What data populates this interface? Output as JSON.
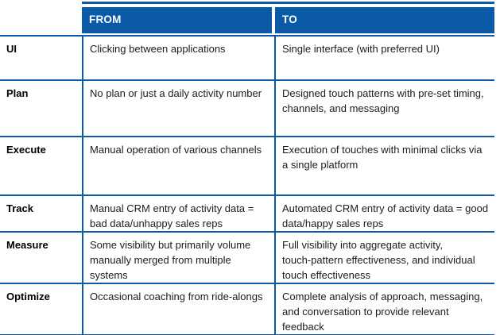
{
  "table": {
    "colors": {
      "accent_blue": "#0b5aa7"
    },
    "header": {
      "from": "FROM",
      "to": "TO"
    },
    "rows": [
      {
        "label": "UI",
        "from": "Clicking between applications",
        "to": "Single interface (with preferred UI)"
      },
      {
        "label": "Plan",
        "from": "No plan or just a daily activity number",
        "to": "Designed touch patterns with pre-set timing,\nchannels, and messaging"
      },
      {
        "label": "Execute",
        "from": "Manual operation of various channels",
        "to": "Execution of touches with minimal clicks via\na single platform"
      },
      {
        "label": "Track",
        "from": "Manual CRM entry of activity data =\nbad data/unhappy sales reps",
        "to": "Automated CRM entry of activity data = good\ndata/happy sales reps"
      },
      {
        "label": "Measure",
        "from": "Some visibility but primarily volume\nmanually merged from multiple\nsystems",
        "to": "Full visibility into aggregate activity,\ntouch-pattern effectiveness, and individual\ntouch effectiveness"
      },
      {
        "label": "Optimize",
        "from": "Occasional coaching from ride-alongs",
        "to": "Complete analysis of approach, messaging,\nand conversation to provide relevant\nfeedback"
      }
    ]
  }
}
